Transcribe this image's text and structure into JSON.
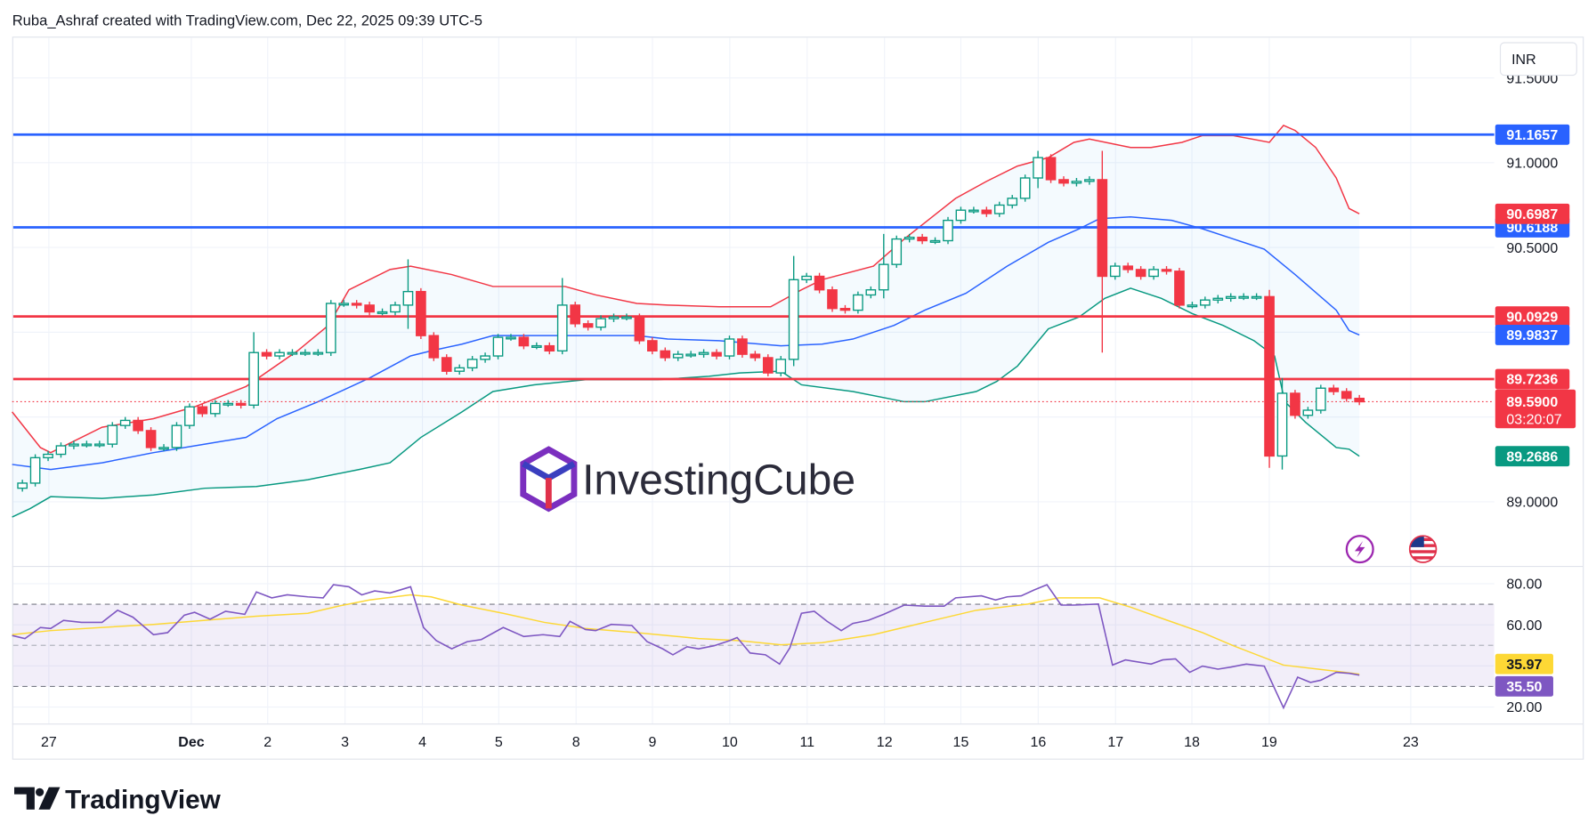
{
  "header": {
    "caption": "Ruba_Ashraf created with TradingView.com, Dec 22, 2025 09:39 UTC-5"
  },
  "currency": "INR",
  "watermark": {
    "text": "InvestingCube"
  },
  "footer": {
    "logo_text": "TradingView"
  },
  "icons": {
    "lightning": "lightning-icon",
    "flag": "us-flag-icon"
  },
  "colors": {
    "up": "#089981",
    "down": "#f23645",
    "blue": "#2962ff",
    "rsi": "#7e57c2",
    "rsi_ma": "#fdd835",
    "band_fill": "#2196f3"
  },
  "chart_data": [
    {
      "type": "candlestick",
      "title": "",
      "x_tick_labels": [
        "27",
        "Dec",
        "2",
        "3",
        "4",
        "5",
        "8",
        "9",
        "10",
        "11",
        "12",
        "15",
        "16",
        "17",
        "18",
        "19",
        "23"
      ],
      "y_tick_labels": [
        "91.5000",
        "91.0000",
        "90.5000",
        "89.0000"
      ],
      "ylim": [
        88.85,
        91.55
      ],
      "grid": true,
      "first_open": 89.08,
      "close": [
        89.11,
        89.26,
        89.28,
        89.33,
        89.34,
        89.34,
        89.34,
        89.45,
        89.48,
        89.42,
        89.32,
        89.32,
        89.45,
        89.56,
        89.52,
        89.58,
        89.58,
        89.57,
        89.88,
        89.86,
        89.88,
        89.88,
        89.88,
        89.88,
        90.17,
        90.17,
        90.16,
        90.12,
        90.12,
        90.16,
        90.24,
        89.98,
        89.85,
        89.77,
        89.79,
        89.84,
        89.86,
        89.97,
        89.97,
        89.92,
        89.92,
        89.89,
        90.16,
        90.05,
        90.03,
        90.08,
        90.09,
        90.09,
        89.95,
        89.89,
        89.85,
        89.87,
        89.87,
        89.88,
        89.86,
        89.96,
        89.87,
        89.85,
        89.76,
        89.84,
        90.31,
        90.33,
        90.25,
        90.14,
        90.13,
        90.22,
        90.25,
        90.4,
        90.55,
        90.56,
        90.54,
        90.54,
        90.66,
        90.72,
        90.72,
        90.7,
        90.75,
        90.79,
        90.91,
        91.03,
        90.9,
        90.88,
        90.89,
        90.9,
        90.33,
        90.39,
        90.37,
        90.33,
        90.37,
        90.36,
        90.16,
        90.16,
        90.19,
        90.2,
        90.21,
        90.21,
        90.21,
        89.27,
        89.64,
        89.51,
        89.54,
        89.67,
        89.65,
        89.61,
        89.59
      ],
      "notable_wicks": [
        {
          "i": 18,
          "high": 90.0,
          "low": 89.55
        },
        {
          "i": 30,
          "high": 90.43,
          "low": 90.02
        },
        {
          "i": 42,
          "high": 90.32,
          "low": 89.88
        },
        {
          "i": 60,
          "high": 90.45,
          "low": 89.8
        },
        {
          "i": 67,
          "high": 90.58,
          "low": 90.2
        },
        {
          "i": 79,
          "high": 91.07,
          "low": 90.85
        },
        {
          "i": 84,
          "high": 91.07,
          "low": 89.88
        },
        {
          "i": 97,
          "high": 90.25,
          "low": 89.2
        },
        {
          "i": 98,
          "high": 89.73,
          "low": 89.19
        }
      ],
      "bollinger": {
        "upper": [
          [
            -0.8,
            89.53
          ],
          [
            1.4,
            89.32
          ],
          [
            2.2,
            89.29
          ],
          [
            6.2,
            89.44
          ],
          [
            10.2,
            89.49
          ],
          [
            13.4,
            89.56
          ],
          [
            17.4,
            89.68
          ],
          [
            21.4,
            89.89
          ],
          [
            23.8,
            90.04
          ],
          [
            25.4,
            90.25
          ],
          [
            28.6,
            90.37
          ],
          [
            30.2,
            90.39
          ],
          [
            33.4,
            90.34
          ],
          [
            36.6,
            90.27
          ],
          [
            42.2,
            90.27
          ],
          [
            44.6,
            90.22
          ],
          [
            47.8,
            90.17
          ],
          [
            50.2,
            90.16
          ],
          [
            54.2,
            90.15
          ],
          [
            58.2,
            90.15
          ],
          [
            60.6,
            90.25
          ],
          [
            62.2,
            90.31
          ],
          [
            66.2,
            90.39
          ],
          [
            68.6,
            90.55
          ],
          [
            70.6,
            90.67
          ],
          [
            72.6,
            90.79
          ],
          [
            75.0,
            90.89
          ],
          [
            77.4,
            90.98
          ],
          [
            79.8,
            91.03
          ],
          [
            81.8,
            91.12
          ],
          [
            83.0,
            91.14
          ],
          [
            86.2,
            91.09
          ],
          [
            87.8,
            91.09
          ],
          [
            90.2,
            91.12
          ],
          [
            91.8,
            91.16
          ],
          [
            94.2,
            91.16
          ],
          [
            97.0,
            91.12
          ],
          [
            98.1,
            91.22
          ],
          [
            99.0,
            91.19
          ],
          [
            100.6,
            91.09
          ],
          [
            102.2,
            90.91
          ],
          [
            103.2,
            90.73
          ],
          [
            104.0,
            90.6987
          ]
        ],
        "middle": [
          [
            -0.8,
            89.22
          ],
          [
            2.2,
            89.19
          ],
          [
            6.2,
            89.23
          ],
          [
            10.2,
            89.29
          ],
          [
            14.2,
            89.34
          ],
          [
            17.4,
            89.38
          ],
          [
            19.8,
            89.49
          ],
          [
            23.0,
            89.59
          ],
          [
            27.0,
            89.73
          ],
          [
            30.2,
            89.86
          ],
          [
            31.8,
            89.89
          ],
          [
            34.2,
            89.93
          ],
          [
            36.6,
            89.98
          ],
          [
            42.2,
            89.98
          ],
          [
            47.8,
            89.98
          ],
          [
            50.2,
            89.96
          ],
          [
            54.2,
            89.95
          ],
          [
            59.0,
            89.92
          ],
          [
            62.2,
            89.93
          ],
          [
            64.6,
            89.96
          ],
          [
            67.8,
            90.04
          ],
          [
            70.2,
            90.13
          ],
          [
            73.4,
            90.23
          ],
          [
            76.6,
            90.39
          ],
          [
            79.8,
            90.53
          ],
          [
            82.2,
            90.61
          ],
          [
            83.8,
            90.67
          ],
          [
            86.2,
            90.68
          ],
          [
            89.4,
            90.66
          ],
          [
            91.8,
            90.61
          ],
          [
            94.2,
            90.55
          ],
          [
            96.6,
            90.49
          ],
          [
            99.0,
            90.34
          ],
          [
            102.2,
            90.13
          ],
          [
            103.2,
            90.01
          ],
          [
            104.0,
            89.9837
          ]
        ],
        "lower": [
          [
            -0.8,
            88.91
          ],
          [
            0.6,
            88.96
          ],
          [
            2.2,
            89.03
          ],
          [
            6.2,
            89.02
          ],
          [
            10.2,
            89.04
          ],
          [
            14.2,
            89.08
          ],
          [
            18.2,
            89.09
          ],
          [
            22.2,
            89.13
          ],
          [
            26.2,
            89.19
          ],
          [
            28.6,
            89.23
          ],
          [
            31.0,
            89.38
          ],
          [
            34.2,
            89.53
          ],
          [
            36.6,
            89.65
          ],
          [
            39.8,
            89.69
          ],
          [
            43.8,
            89.72
          ],
          [
            49.4,
            89.72
          ],
          [
            53.4,
            89.74
          ],
          [
            55.8,
            89.76
          ],
          [
            59.0,
            89.77
          ],
          [
            60.6,
            89.69
          ],
          [
            64.6,
            89.65
          ],
          [
            68.6,
            89.59
          ],
          [
            70.2,
            89.59
          ],
          [
            74.2,
            89.65
          ],
          [
            75.8,
            89.71
          ],
          [
            77.4,
            89.8
          ],
          [
            79.8,
            90.02
          ],
          [
            82.2,
            90.09
          ],
          [
            84.2,
            90.2
          ],
          [
            86.2,
            90.26
          ],
          [
            88.6,
            90.2
          ],
          [
            91.0,
            90.11
          ],
          [
            93.4,
            90.04
          ],
          [
            95.8,
            89.95
          ],
          [
            97.4,
            89.86
          ],
          [
            98.2,
            89.59
          ],
          [
            99.8,
            89.47
          ],
          [
            102.2,
            89.32
          ],
          [
            103.2,
            89.31
          ],
          [
            104.0,
            89.2686
          ]
        ]
      },
      "horizontal_lines": [
        {
          "value": 91.1657,
          "label": "91.1657",
          "color": "#2962ff"
        },
        {
          "value": 90.6188,
          "label": "90.6188",
          "color": "#2962ff"
        },
        {
          "value": 90.0929,
          "label": "90.0929",
          "color": "#f23645"
        },
        {
          "value": 89.7236,
          "label": "89.7236",
          "color": "#f23645"
        }
      ],
      "axis_labels": [
        {
          "value": 90.6987,
          "label": "90.6987",
          "color": "#f23645"
        },
        {
          "value": 89.9837,
          "label": "89.9837",
          "color": "#2962ff"
        },
        {
          "value": 89.2686,
          "label": "89.2686",
          "color": "#089981"
        }
      ],
      "last_price": {
        "value": 89.59,
        "label": "89.5900",
        "countdown": "03:20:07",
        "color": "#f23645"
      }
    },
    {
      "type": "line",
      "title": "",
      "ylim": [
        14,
        90
      ],
      "y_tick_labels": [
        "80.00",
        "60.00",
        "20.00"
      ],
      "band": {
        "upper": 70,
        "middle": 50,
        "lower": 30
      },
      "rsi": [
        [
          -0.8,
          54.8
        ],
        [
          0.2,
          53.3
        ],
        [
          1.4,
          58.7
        ],
        [
          2.2,
          58.2
        ],
        [
          3.2,
          62.2
        ],
        [
          4.6,
          61.2
        ],
        [
          6.2,
          61.2
        ],
        [
          7.4,
          67.1
        ],
        [
          8.6,
          63.7
        ],
        [
          10.2,
          55.2
        ],
        [
          11.3,
          56.2
        ],
        [
          12.6,
          64.7
        ],
        [
          13.4,
          66.1
        ],
        [
          14.6,
          62.7
        ],
        [
          15.8,
          66.6
        ],
        [
          17.3,
          65.1
        ],
        [
          18.2,
          76.0
        ],
        [
          19.4,
          73.1
        ],
        [
          20.6,
          74.6
        ],
        [
          22.2,
          73.6
        ],
        [
          23.4,
          73.1
        ],
        [
          24.2,
          79.5
        ],
        [
          25.4,
          78.5
        ],
        [
          26.4,
          74.6
        ],
        [
          27.4,
          76.5
        ],
        [
          28.6,
          75.5
        ],
        [
          30.2,
          78.5
        ],
        [
          31.2,
          58.7
        ],
        [
          32.2,
          52.3
        ],
        [
          33.4,
          48.3
        ],
        [
          34.6,
          51.8
        ],
        [
          35.7,
          52.8
        ],
        [
          37.4,
          58.7
        ],
        [
          39.0,
          54.3
        ],
        [
          40.5,
          55.2
        ],
        [
          41.8,
          54.3
        ],
        [
          42.6,
          61.7
        ],
        [
          43.8,
          57.7
        ],
        [
          44.6,
          57.2
        ],
        [
          45.8,
          60.2
        ],
        [
          47.4,
          59.7
        ],
        [
          48.6,
          51.8
        ],
        [
          49.8,
          48.3
        ],
        [
          50.6,
          45.4
        ],
        [
          51.7,
          49.3
        ],
        [
          52.6,
          48.3
        ],
        [
          53.8,
          49.8
        ],
        [
          55.0,
          52.3
        ],
        [
          55.6,
          53.8
        ],
        [
          56.6,
          46.3
        ],
        [
          57.8,
          45.4
        ],
        [
          58.9,
          40.9
        ],
        [
          59.7,
          48.8
        ],
        [
          60.6,
          65.6
        ],
        [
          61.6,
          66.6
        ],
        [
          62.6,
          61.7
        ],
        [
          63.7,
          57.2
        ],
        [
          64.6,
          60.7
        ],
        [
          65.8,
          62.2
        ],
        [
          67.0,
          65.1
        ],
        [
          68.6,
          69.6
        ],
        [
          70.2,
          69.1
        ],
        [
          71.7,
          69.1
        ],
        [
          72.6,
          73.1
        ],
        [
          74.6,
          74.1
        ],
        [
          75.7,
          72.1
        ],
        [
          76.6,
          73.6
        ],
        [
          77.7,
          74.1
        ],
        [
          78.7,
          77.0
        ],
        [
          79.7,
          79.5
        ],
        [
          80.8,
          69.6
        ],
        [
          81.8,
          69.6
        ],
        [
          83.7,
          70.1
        ],
        [
          84.8,
          40.4
        ],
        [
          85.8,
          42.9
        ],
        [
          87.8,
          40.9
        ],
        [
          88.7,
          42.9
        ],
        [
          89.7,
          43.4
        ],
        [
          90.8,
          36.9
        ],
        [
          91.8,
          39.9
        ],
        [
          93.0,
          38.4
        ],
        [
          94.0,
          39.4
        ],
        [
          95.2,
          40.9
        ],
        [
          96.6,
          39.9
        ],
        [
          98.1,
          19.6
        ],
        [
          99.2,
          34.5
        ],
        [
          100.2,
          32.0
        ],
        [
          101.0,
          33.0
        ],
        [
          102.2,
          36.9
        ],
        [
          103.2,
          36.4
        ],
        [
          104.0,
          35.5
        ]
      ],
      "rsi_ma": [
        [
          -0.8,
          55.2
        ],
        [
          2.2,
          57.2
        ],
        [
          6.2,
          58.7
        ],
        [
          10.2,
          60.2
        ],
        [
          14.2,
          62.2
        ],
        [
          18.2,
          64.2
        ],
        [
          22.2,
          65.6
        ],
        [
          24.6,
          69.1
        ],
        [
          27.0,
          72.1
        ],
        [
          30.2,
          74.6
        ],
        [
          31.8,
          73.6
        ],
        [
          34.2,
          69.6
        ],
        [
          37.4,
          65.6
        ],
        [
          40.6,
          61.2
        ],
        [
          43.8,
          58.2
        ],
        [
          47.8,
          56.2
        ],
        [
          52.6,
          53.3
        ],
        [
          55.8,
          52.3
        ],
        [
          59.0,
          50.3
        ],
        [
          62.2,
          51.3
        ],
        [
          66.2,
          55.2
        ],
        [
          70.2,
          61.2
        ],
        [
          74.2,
          67.1
        ],
        [
          78.2,
          70.1
        ],
        [
          80.6,
          73.1
        ],
        [
          83.8,
          73.1
        ],
        [
          86.2,
          68.6
        ],
        [
          88.6,
          63.2
        ],
        [
          91.8,
          56.2
        ],
        [
          94.2,
          49.8
        ],
        [
          98.1,
          40.4
        ],
        [
          102.2,
          37.4
        ],
        [
          104.0,
          35.97
        ]
      ],
      "last_labels": [
        {
          "label": "35.97",
          "value": 35.97,
          "color": "#fdd835"
        },
        {
          "label": "35.50",
          "value": 35.5,
          "color": "#7e57c2"
        }
      ]
    }
  ]
}
